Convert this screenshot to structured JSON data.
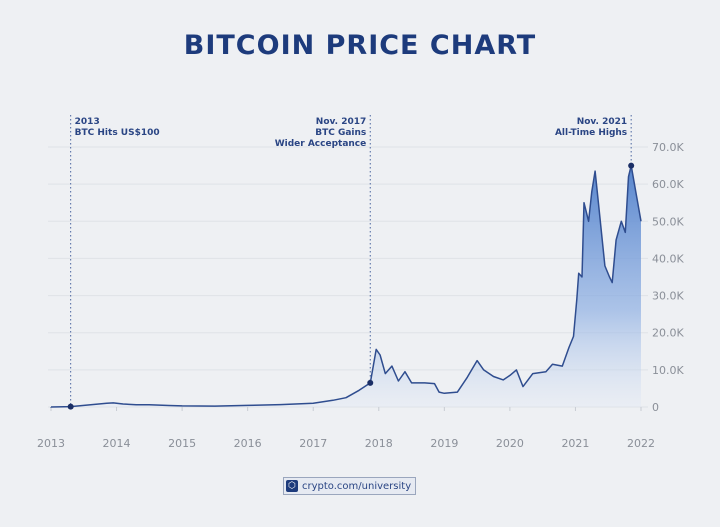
{
  "chart_data": {
    "type": "area",
    "title": "BITCOIN PRICE CHART",
    "xlabel": "",
    "ylabel": "",
    "xlim": [
      2013,
      2022
    ],
    "ylim": [
      0,
      70000
    ],
    "x_ticks": [
      "2013",
      "2014",
      "2015",
      "2016",
      "2017",
      "2018",
      "2019",
      "2020",
      "2021",
      "2022"
    ],
    "y_ticks": [
      "0",
      "10.0K",
      "20.0K",
      "30.0K",
      "40.0K",
      "50.0K",
      "60.0K",
      "70.0K"
    ],
    "grid": true,
    "colors": {
      "line": "#2f4d8f",
      "fill": "#5b87d0",
      "title": "#1d3b7c",
      "marker": "#1b2f66"
    },
    "x": [
      2013.0,
      2013.3,
      2013.85,
      2013.95,
      2014.1,
      2014.3,
      2014.5,
      2014.8,
      2015.0,
      2015.5,
      2016.0,
      2016.5,
      2017.0,
      2017.3,
      2017.5,
      2017.7,
      2017.87,
      2017.96,
      2018.02,
      2018.1,
      2018.2,
      2018.3,
      2018.4,
      2018.5,
      2018.7,
      2018.85,
      2018.92,
      2019.0,
      2019.2,
      2019.35,
      2019.5,
      2019.6,
      2019.75,
      2019.9,
      2020.0,
      2020.1,
      2020.2,
      2020.35,
      2020.55,
      2020.65,
      2020.8,
      2020.9,
      2020.97,
      2021.02,
      2021.05,
      2021.1,
      2021.13,
      2021.2,
      2021.25,
      2021.3,
      2021.35,
      2021.45,
      2021.52,
      2021.56,
      2021.62,
      2021.7,
      2021.76,
      2021.81,
      2021.85,
      2021.93,
      2022.0
    ],
    "y": [
      13,
      100,
      1000,
      1100,
      800,
      600,
      600,
      400,
      300,
      250,
      430,
      650,
      1000,
      1800,
      2500,
      4500,
      6500,
      15500,
      14000,
      9000,
      11000,
      7000,
      9500,
      6500,
      6500,
      6300,
      4000,
      3700,
      4000,
      8000,
      12500,
      10000,
      8200,
      7300,
      8500,
      10000,
      5500,
      9000,
      9500,
      11500,
      11000,
      16000,
      19000,
      29000,
      36000,
      35000,
      55000,
      50000,
      58000,
      63500,
      55000,
      38000,
      35000,
      33500,
      45000,
      50000,
      47000,
      62000,
      65000,
      57000,
      50000
    ],
    "annotations": [
      {
        "x": 2013.3,
        "y": 100,
        "lines": [
          "2013",
          "BTC Hits US$100"
        ]
      },
      {
        "x": 2017.87,
        "y": 6500,
        "lines": [
          "Nov. 2017",
          "BTC Gains",
          "Wider Acceptance"
        ]
      },
      {
        "x": 2021.85,
        "y": 65000,
        "lines": [
          "Nov. 2021",
          "All-Time Highs"
        ]
      }
    ]
  },
  "footer": {
    "text": "crypto.com/university"
  }
}
